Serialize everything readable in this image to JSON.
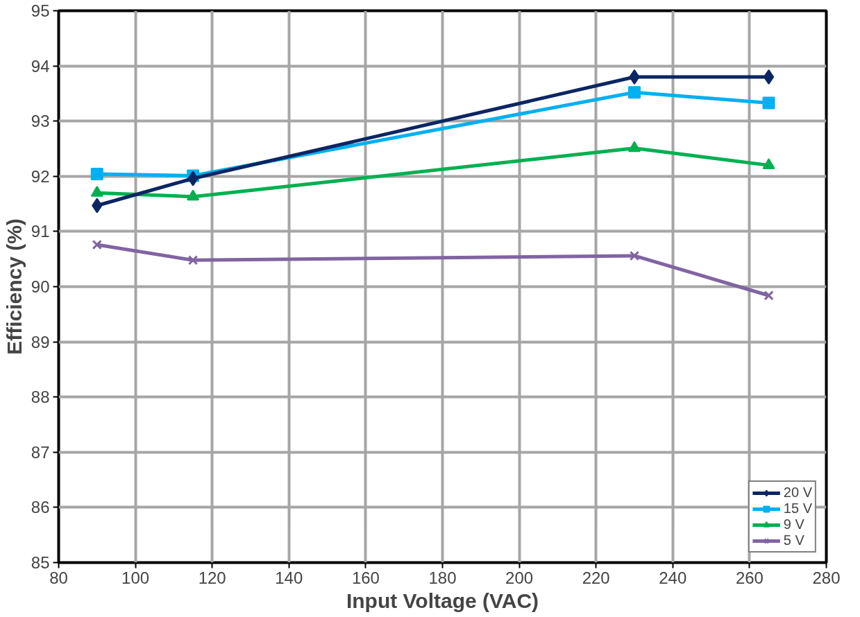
{
  "chart_data": {
    "type": "line",
    "xlabel": "Input Voltage (VAC)",
    "ylabel": "Efficiency (%)",
    "x": [
      90,
      115,
      230,
      265
    ],
    "series": [
      {
        "name": "20 V",
        "color": "#0c2663",
        "marker": "diamond",
        "values": [
          91.47,
          91.96,
          93.8,
          93.8
        ]
      },
      {
        "name": "15 V",
        "color": "#00b0f0",
        "marker": "square",
        "values": [
          92.04,
          92.01,
          93.52,
          93.33
        ]
      },
      {
        "name": "9 V",
        "color": "#00b050",
        "marker": "triangle",
        "values": [
          91.7,
          91.63,
          92.51,
          92.2
        ]
      },
      {
        "name": "5 V",
        "color": "#8064a2",
        "marker": "cross",
        "values": [
          90.76,
          90.48,
          90.56,
          89.84
        ]
      }
    ],
    "xlim": [
      80,
      280
    ],
    "xticks": [
      80,
      100,
      120,
      140,
      160,
      180,
      200,
      220,
      240,
      260,
      280
    ],
    "ylim": [
      85,
      95
    ],
    "yticks": [
      85,
      86,
      87,
      88,
      89,
      90,
      91,
      92,
      93,
      94,
      95
    ],
    "grid": true,
    "legend": "bottom right",
    "line_style": "solid"
  }
}
